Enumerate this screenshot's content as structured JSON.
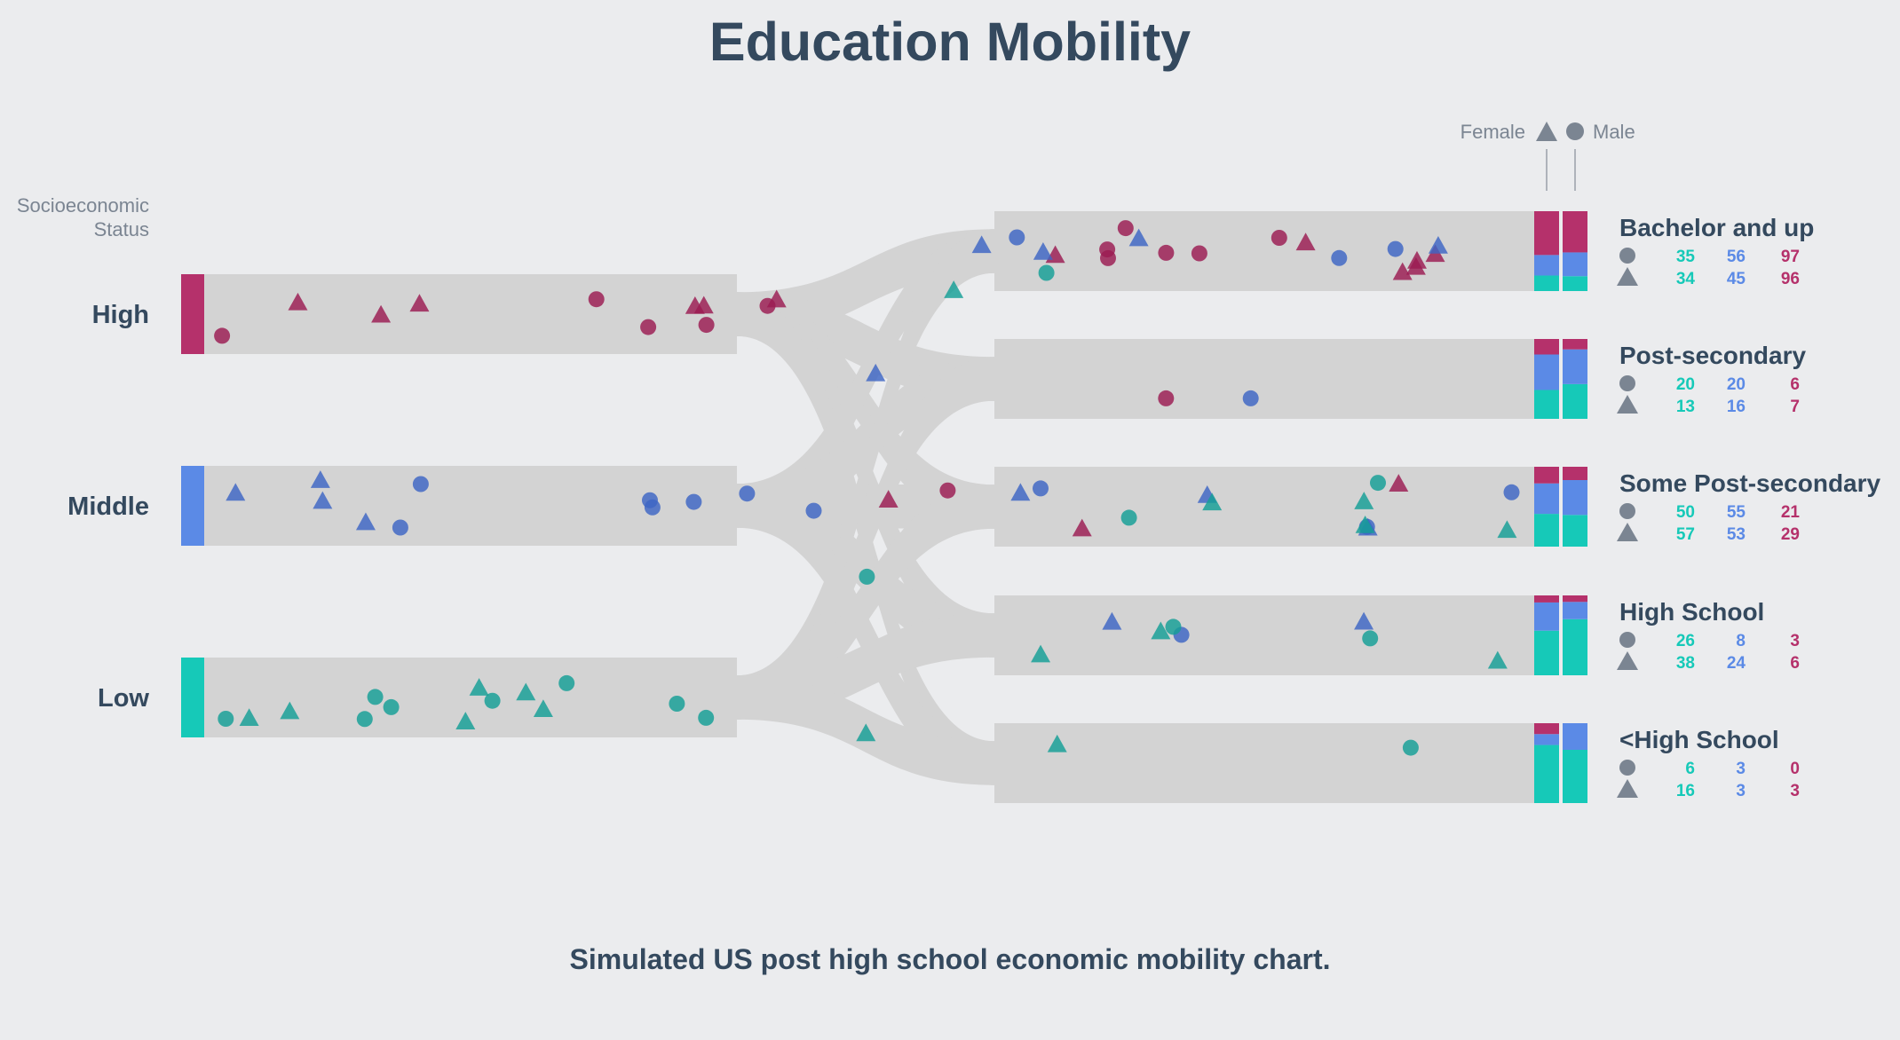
{
  "colors": {
    "background": "#ebecee",
    "band": "#d3d3d3",
    "text": "#34495e",
    "muted": "#7b8592",
    "low": "#16c9b8",
    "middle": "#5b8ae6",
    "high": "#b5316b",
    "dot_low": "#139f96",
    "dot_middle": "#3d65c4",
    "dot_high": "#9b1b52"
  },
  "chart_data": {
    "type": "sankey",
    "title": "Education Mobility",
    "subtitle": "Simulated US post high school economic mobility chart.",
    "axis_label": "Socioeconomic Status",
    "legend": {
      "female_label": "Female",
      "male_label": "Male",
      "female_symbol": "triangle",
      "male_symbol": "circle"
    },
    "sources": [
      "High",
      "Middle",
      "Low"
    ],
    "series_order": [
      "Low",
      "Middle",
      "High"
    ],
    "outcomes": [
      {
        "name": "Bachelor and up",
        "male": {
          "Low": 35,
          "Middle": 56,
          "High": 97
        },
        "female": {
          "Low": 34,
          "Middle": 45,
          "High": 96
        }
      },
      {
        "name": "Post-secondary",
        "male": {
          "Low": 20,
          "Middle": 20,
          "High": 6
        },
        "female": {
          "Low": 13,
          "Middle": 16,
          "High": 7
        }
      },
      {
        "name": "Some Post-secondary",
        "male": {
          "Low": 50,
          "Middle": 55,
          "High": 21
        },
        "female": {
          "Low": 57,
          "Middle": 53,
          "High": 29
        }
      },
      {
        "name": "High School",
        "male": {
          "Low": 26,
          "Middle": 8,
          "High": 3
        },
        "female": {
          "Low": 38,
          "Middle": 24,
          "High": 6
        }
      },
      {
        "name": "<High School",
        "male": {
          "Low": 6,
          "Middle": 3,
          "High": 0
        },
        "female": {
          "Low": 16,
          "Middle": 3,
          "High": 3
        }
      }
    ]
  }
}
